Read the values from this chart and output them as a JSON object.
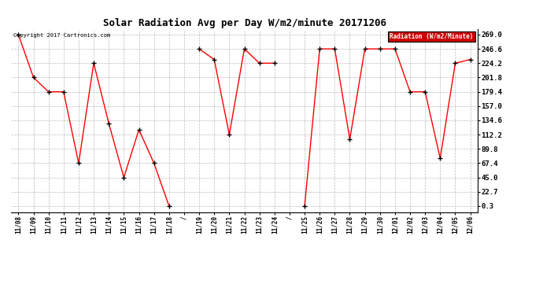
{
  "title": "Solar Radiation Avg per Day W/m2/minute 20171206",
  "copyright": "Copyright 2017 Cartronics.com",
  "legend_label": "Radiation (W/m2/Minute)",
  "labels": [
    "11/08",
    "11/09",
    "11/10",
    "11/11",
    "11/12",
    "11/13",
    "11/14",
    "11/15",
    "11/16",
    "11/17",
    "11/18",
    "/",
    "11/19",
    "11/20",
    "11/21",
    "11/22",
    "11/23",
    "11/24",
    "/",
    "11/25",
    "11/26",
    "11/27",
    "11/28",
    "11/29",
    "11/30",
    "12/01",
    "12/02",
    "12/03",
    "12/04",
    "12/05",
    "12/06"
  ],
  "values": [
    269.0,
    201.8,
    179.4,
    179.4,
    67.4,
    224.2,
    130.0,
    45.0,
    120.0,
    67.4,
    0.3,
    null,
    246.6,
    230.0,
    112.2,
    246.6,
    224.2,
    224.2,
    null,
    0.3,
    246.6,
    246.6,
    105.0,
    246.6,
    246.6,
    246.6,
    179.4,
    179.4,
    75.0,
    224.2,
    230.0
  ],
  "line_color": "#ff0000",
  "marker_color": "black",
  "background_color": "#ffffff",
  "grid_color": "#aaaaaa",
  "yticks": [
    0.3,
    22.7,
    45.0,
    67.4,
    89.8,
    112.2,
    134.6,
    157.0,
    179.4,
    201.8,
    224.2,
    246.6,
    269.0
  ],
  "ymin": 0.3,
  "ymax": 269.0,
  "legend_bg": "#cc0000",
  "legend_fg": "#ffffff",
  "fig_width": 6.9,
  "fig_height": 3.75,
  "dpi": 100
}
